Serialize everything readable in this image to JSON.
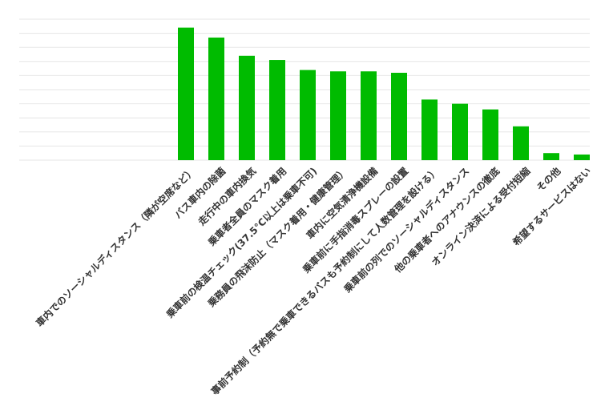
{
  "chart_data": {
    "type": "bar",
    "title": "",
    "xlabel": "",
    "ylabel": "",
    "ylim": [
      0,
      100
    ],
    "grid": true,
    "legend": "none",
    "bar_color": "#00bb00",
    "categories": [
      "車内でのソーシャルディスタンス（隣が空席など）",
      "バス車内の除菌",
      "走行中の車内換気",
      "乗車者全員のマスク着用",
      "乗車前の検温チェック(37.5°C以上は乗車不可)",
      "乗務員の飛沫防止（マスク着用・健康管理）",
      "車内に空気清浄機設備",
      "乗車前に手指消毒スプレーの設置",
      "事前予約制（予約無で乗車できるバスも予約制にして人数管理を設ける）",
      "乗車前の列でのソーシャルディスタンス",
      "他の乗車者へのアナウンスの徹底",
      "オンライン決済による受付短縮",
      "その他",
      "希望するサービスはない"
    ],
    "values": [
      94,
      87,
      74,
      71,
      64,
      63,
      63,
      62,
      43,
      40,
      36,
      24,
      5,
      4
    ]
  }
}
